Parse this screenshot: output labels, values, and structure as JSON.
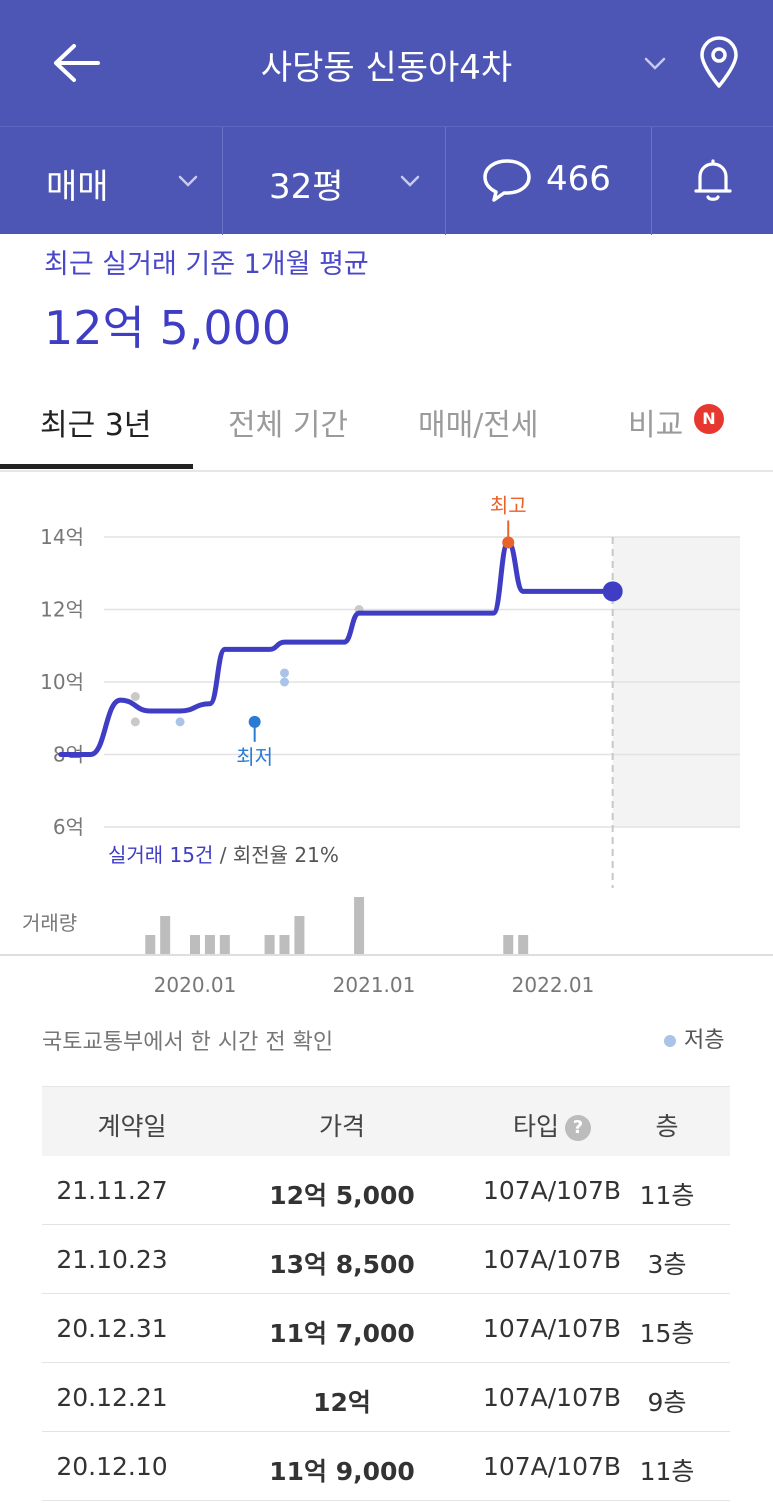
{
  "header": {
    "title": "사당동 신동아4차"
  },
  "filters": {
    "trade_type": "매매",
    "size": "32평",
    "comment_count": "466"
  },
  "summary": {
    "label": "최근 실거래 기준 1개월 평균",
    "value": "12억 5,000"
  },
  "tabs": [
    {
      "label": "최근 3년"
    },
    {
      "label": "전체 기간"
    },
    {
      "label": "매매/전세"
    },
    {
      "label": "비교"
    }
  ],
  "tab_badge": "N",
  "chart_data": {
    "type": "line",
    "y_ticks": [
      "14억",
      "12억",
      "10억",
      "8억",
      "6억"
    ],
    "ylim": [
      6,
      14
    ],
    "x_ticks": [
      "2020.01",
      "2021.01",
      "2022.01"
    ],
    "series": [
      {
        "values": [
          {
            "x": "2019.04",
            "y": 8.0
          },
          {
            "x": "2019.06",
            "y": 8.0
          },
          {
            "x": "2019.08",
            "y": 9.5
          },
          {
            "x": "2019.10",
            "y": 9.2
          },
          {
            "x": "2019.12",
            "y": 9.2
          },
          {
            "x": "2020.02",
            "y": 9.4
          },
          {
            "x": "2020.03",
            "y": 10.9
          },
          {
            "x": "2020.06",
            "y": 10.9
          },
          {
            "x": "2020.07",
            "y": 11.1
          },
          {
            "x": "2020.11",
            "y": 11.1
          },
          {
            "x": "2020.12",
            "y": 11.9
          },
          {
            "x": "2021.09",
            "y": 11.9
          },
          {
            "x": "2021.10",
            "y": 13.85
          },
          {
            "x": "2021.11",
            "y": 12.5
          },
          {
            "x": "2022.05",
            "y": 12.5
          }
        ]
      }
    ],
    "trade_points": [
      {
        "x": "2019.09",
        "y": 9.6,
        "low": false
      },
      {
        "x": "2019.09",
        "y": 8.9,
        "low": false
      },
      {
        "x": "2019.12",
        "y": 8.9,
        "low": true
      },
      {
        "x": "2020.07",
        "y": 10.25,
        "low": true
      },
      {
        "x": "2020.07",
        "y": 10.0,
        "low": true
      },
      {
        "x": "2020.12",
        "y": 12.0,
        "low": false
      }
    ],
    "high": {
      "label": "최고",
      "x": "2021.10",
      "y": 13.85
    },
    "low": {
      "label": "최저",
      "x": "2020.05",
      "y": 8.9
    },
    "volume_label": "거래량",
    "volume": [
      {
        "x": "2019.10",
        "v": 1
      },
      {
        "x": "2019.11",
        "v": 2
      },
      {
        "x": "2020.01",
        "v": 1
      },
      {
        "x": "2020.02",
        "v": 1
      },
      {
        "x": "2020.03",
        "v": 1
      },
      {
        "x": "2020.06",
        "v": 1
      },
      {
        "x": "2020.07",
        "v": 1
      },
      {
        "x": "2020.08",
        "v": 2
      },
      {
        "x": "2020.12",
        "v": 3
      },
      {
        "x": "2021.10",
        "v": 1
      },
      {
        "x": "2021.11",
        "v": 1
      }
    ],
    "stats_count": "실거래 15건",
    "stats_rate": " / 회전율 21%",
    "grid": true
  },
  "source_note": "국토교통부에서 한 시간 전 확인",
  "legend_low": "저층",
  "table": {
    "headers": [
      "계약일",
      "가격",
      "타입",
      "층"
    ],
    "rows": [
      {
        "date": "21.11.27",
        "price": "12억 5,000",
        "type": "107A/107B",
        "floor": "11층"
      },
      {
        "date": "21.10.23",
        "price": "13억 8,500",
        "type": "107A/107B",
        "floor": "3층"
      },
      {
        "date": "20.12.31",
        "price": "11억 7,000",
        "type": "107A/107B",
        "floor": "15층"
      },
      {
        "date": "20.12.21",
        "price": "12억",
        "type": "107A/107B",
        "floor": "9층"
      },
      {
        "date": "20.12.10",
        "price": "11억 9,000",
        "type": "107A/107B",
        "floor": "11층"
      }
    ]
  },
  "colors": {
    "brand": "#4d56b4",
    "line": "#3f3dc4",
    "high": "#e8622a",
    "low": "#2a7bd6",
    "volume": "#bdbdbd"
  },
  "icons": [
    "back-arrow-icon",
    "chevron-down-icon",
    "location-pin-icon",
    "chat-bubble-icon",
    "bell-icon",
    "question-icon"
  ]
}
